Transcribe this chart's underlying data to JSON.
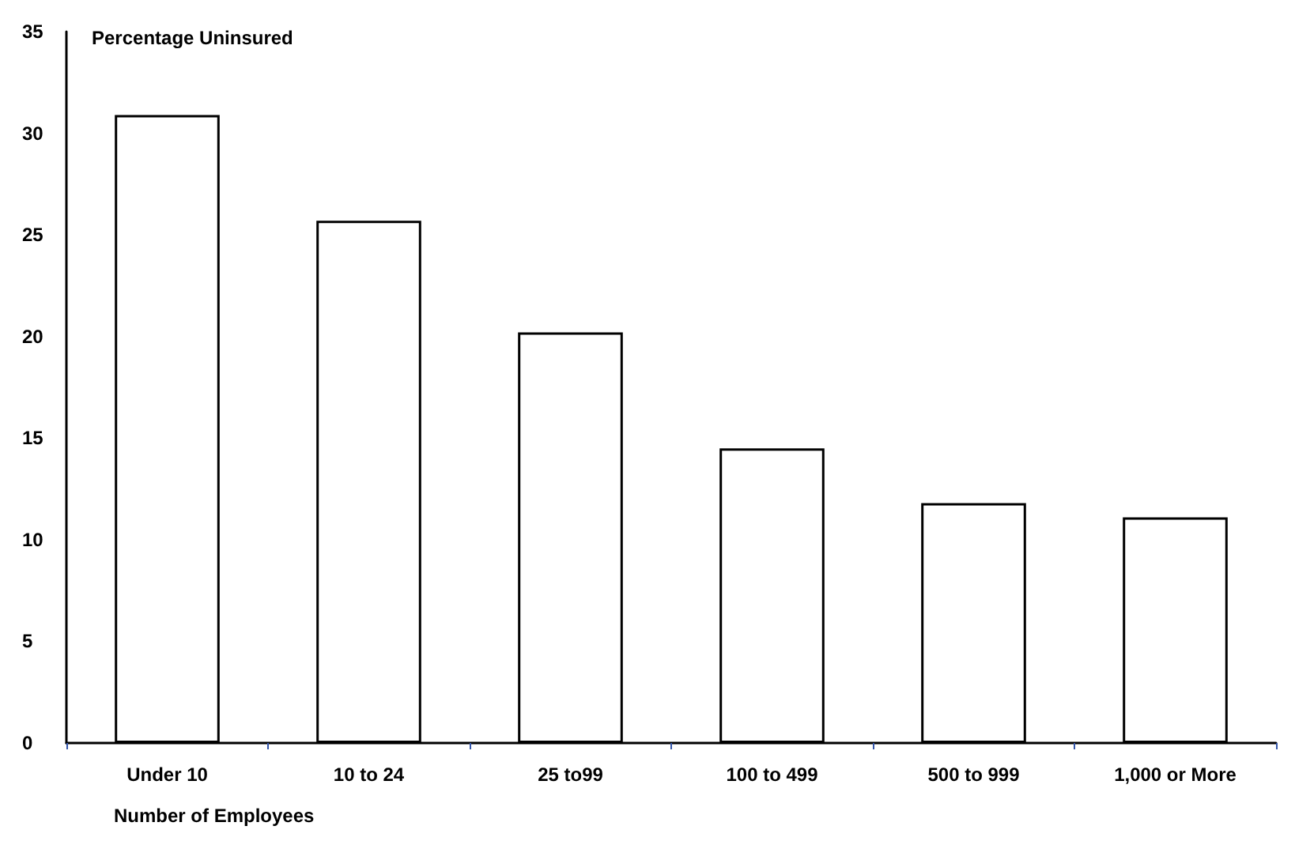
{
  "chart_data": {
    "type": "bar",
    "ylabel": "Percentage Uninsured",
    "xlabel": "Number of Employees",
    "categories": [
      "Under 10",
      "10 to 24",
      "25 to99",
      "100 to 499",
      "500 to 999",
      "1,000 or More"
    ],
    "values": [
      30.9,
      25.7,
      20.2,
      14.5,
      11.8,
      11.1
    ],
    "color": "#ffffff",
    "ylim": [
      0,
      35
    ],
    "yticks": [
      0,
      5,
      10,
      15,
      20,
      25,
      30,
      35
    ],
    "grid": false
  }
}
